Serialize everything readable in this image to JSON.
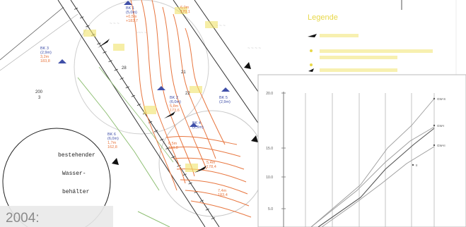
{
  "map": {
    "bk_labels": [
      {
        "name": "BK 1",
        "lines": [
          "BK 1",
          "(5,0m)",
          "+0,5m",
          "+182,7"
        ]
      },
      {
        "name": "BK 2",
        "lines": [
          "BK 2",
          "(6,0m)",
          "5,8m",
          "173,6"
        ]
      },
      {
        "name": "BK 3",
        "lines": [
          "BK 3",
          "(2,9m)",
          "3,2m",
          "183,8"
        ]
      },
      {
        "name": "BK 4",
        "lines": [
          "BK 4",
          "(2,9m)"
        ]
      },
      {
        "name": "BK 5",
        "lines": [
          "BK 5",
          "(2,9m)"
        ]
      },
      {
        "name": "BK 6",
        "lines": [
          "BK 6",
          "(6,0m)",
          "1,7m",
          "162,8"
        ]
      }
    ],
    "orange_values": [
      {
        "lines": [
          "6,0m",
          "170,1"
        ]
      },
      {
        "lines": [
          "6,5m",
          "159,8"
        ]
      },
      {
        "lines": [
          "5,4m",
          "178,4"
        ]
      },
      {
        "lines": [
          "7,4m",
          "183,4"
        ]
      }
    ],
    "small_labels": [
      "200",
      "3",
      "28",
      "21",
      "22"
    ],
    "tank_lines": [
      "bestehender",
      "Wasser-",
      "behälter"
    ]
  },
  "legend": {
    "title": "Legende"
  },
  "chart_data": {
    "type": "line",
    "yticks": [
      "20.0",
      "15.0",
      "10.0",
      "5.0"
    ],
    "series_labels": [
      "GW-S",
      "GW-I",
      "GW-II",
      "II"
    ]
  },
  "caption": {
    "year": "2004:"
  },
  "colors": {
    "orange": "#e8763f",
    "blue": "#3f4fa8",
    "yellow": "#e8d84a",
    "green": "#8fbf74",
    "grey": "#777777"
  }
}
